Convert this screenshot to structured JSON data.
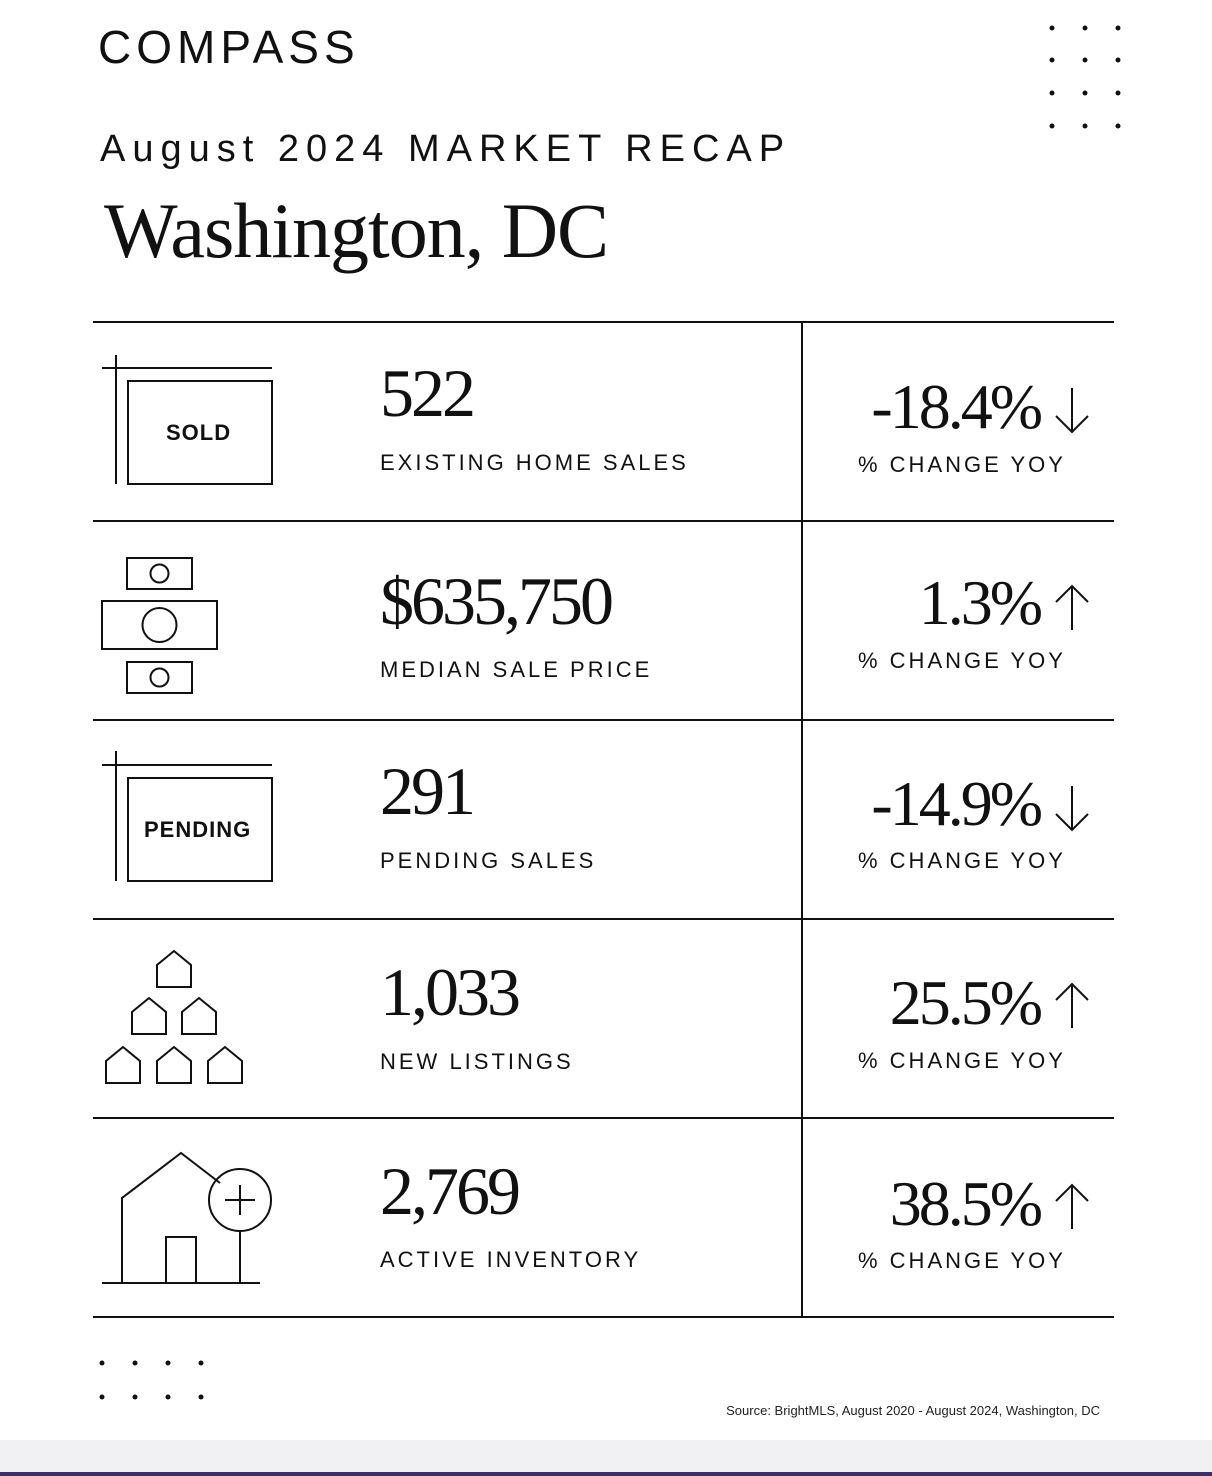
{
  "brand": "COMPASS",
  "subtitle": "August 2024 MARKET RECAP",
  "title": "Washington, DC",
  "rows": [
    {
      "icon_label": "SOLD",
      "value": "522",
      "label": "EXISTING HOME SALES",
      "change": "-18.4%",
      "change_label": "% CHANGE YOY"
    },
    {
      "value": "$635,750",
      "label": "MEDIAN SALE PRICE",
      "change": "1.3%",
      "change_label": "% CHANGE YOY"
    },
    {
      "icon_label": "PENDING",
      "value": "291",
      "label": "PENDING SALES",
      "change": "-14.9%",
      "change_label": "% CHANGE YOY"
    },
    {
      "value": "1,033",
      "label": "NEW LISTINGS",
      "change": "25.5%",
      "change_label": "% CHANGE YOY"
    },
    {
      "value": "2,769",
      "label": "ACTIVE INVENTORY",
      "change": "38.5%",
      "change_label": "% CHANGE YOY"
    }
  ],
  "source": "Source: BrightMLS, August 2020 - August 2024, Washington, DC"
}
